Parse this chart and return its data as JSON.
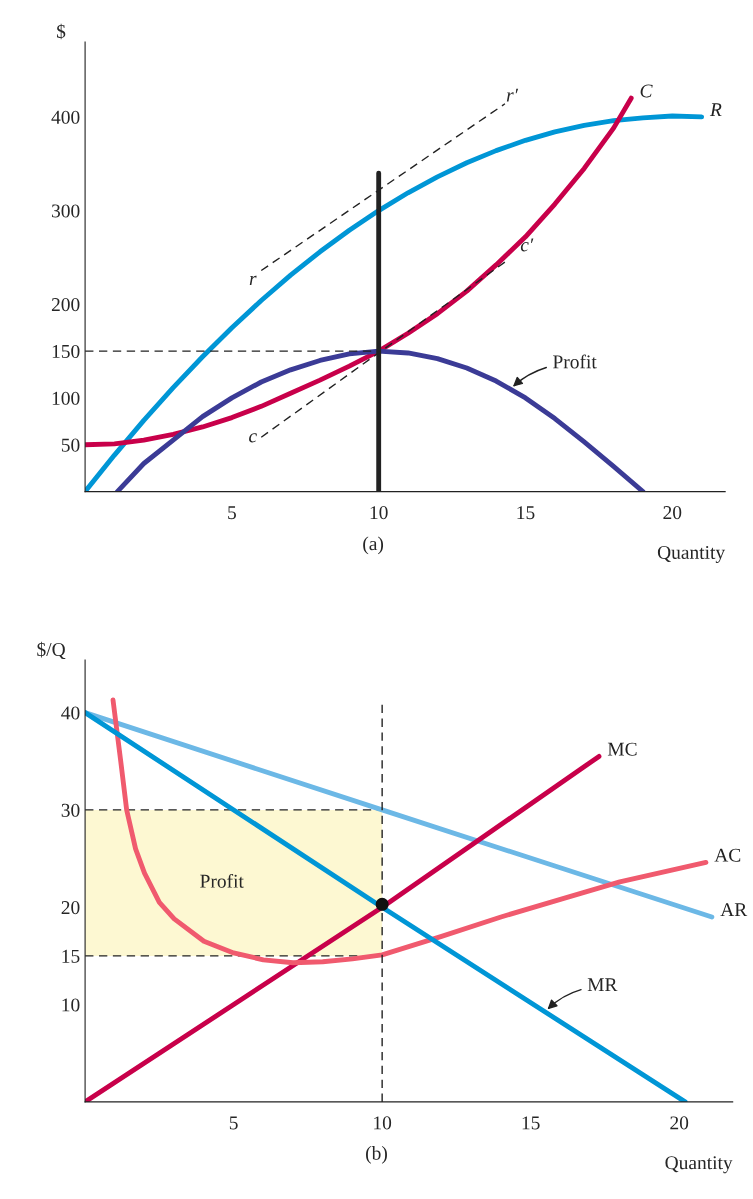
{
  "chart_data": [
    {
      "type": "line",
      "xlabel": "Quantity",
      "ylabel": "$",
      "xlim": [
        0,
        21.8
      ],
      "ylim": [
        0,
        480
      ],
      "xticks": [
        5,
        10,
        15,
        20
      ],
      "yticks": [
        50,
        100,
        150,
        200,
        300,
        400
      ],
      "grid": false,
      "legend": false,
      "series": [
        {
          "name": "R",
          "color": "#0096d6",
          "x": [
            0,
            1,
            2,
            3,
            4,
            5,
            6,
            7,
            8,
            9,
            10,
            11,
            12,
            13,
            14,
            15,
            16,
            17,
            18,
            19,
            20,
            21
          ],
          "values": [
            0,
            39,
            76,
            111,
            144,
            175,
            204,
            231,
            256,
            279,
            300,
            319,
            336,
            351,
            364,
            375,
            384,
            391,
            396,
            399,
            401,
            400
          ]
        },
        {
          "name": "C",
          "color": "#c8004a",
          "x": [
            0,
            1,
            2,
            3,
            4,
            5,
            6,
            7,
            8,
            9,
            10,
            11,
            12,
            13,
            14,
            15,
            16,
            17,
            18,
            18.6
          ],
          "values": [
            50,
            51,
            55,
            61,
            69,
            79,
            91,
            105,
            119,
            134,
            150,
            169,
            190,
            214,
            242,
            272,
            307,
            345,
            388,
            420
          ]
        },
        {
          "color": "#3b3b96",
          "x": [
            1.1,
            2,
            3,
            4,
            5,
            6,
            7,
            8,
            9,
            10,
            11,
            12,
            13,
            14,
            15,
            16,
            17,
            18,
            19
          ],
          "values": [
            0,
            30,
            55,
            80,
            100,
            117,
            130,
            140,
            147,
            150,
            148,
            142,
            132,
            118,
            100,
            78,
            53,
            27,
            0
          ]
        },
        {
          "color": "#222222",
          "x": [
            10,
            10
          ],
          "values": [
            0,
            340
          ]
        },
        {
          "color": "#222222",
          "line_style": "dashed",
          "x": [
            0,
            10
          ],
          "values": [
            150,
            150
          ]
        },
        {
          "color": "#222222",
          "line_style": "dashed",
          "x": [
            6.0,
            14.3
          ],
          "values": [
            236,
            414
          ]
        },
        {
          "color": "#222222",
          "line_style": "dashed",
          "x": [
            6.0,
            14.3
          ],
          "values": [
            58,
            245
          ]
        }
      ],
      "annotations": [
        "r",
        "r′",
        "c",
        "c′",
        {
          "text": "Profit",
          "x": 14.5,
          "y": 110
        },
        "(a)"
      ]
    },
    {
      "type": "line",
      "xlabel": "Quantity",
      "ylabel": "$/Q",
      "xlim": [
        0,
        21.8
      ],
      "ylim": [
        0,
        45.4
      ],
      "xticks": [
        5,
        10,
        15,
        20
      ],
      "yticks": [
        10,
        15,
        20,
        30,
        40
      ],
      "grid": false,
      "legend": false,
      "series": [
        {
          "color": "#222222",
          "line_style": "dashed",
          "x": [
            0,
            10
          ],
          "values": [
            30,
            30
          ]
        },
        {
          "color": "#222222",
          "line_style": "dashed",
          "x": [
            0,
            10
          ],
          "values": [
            15,
            15
          ]
        },
        {
          "name": "AR",
          "color": "#6cb8e6",
          "x": [
            0,
            10,
            21.1
          ],
          "values": [
            40,
            30,
            19
          ]
        },
        {
          "name": "MC",
          "color": "#c8004a",
          "x": [
            0,
            10,
            17.3
          ],
          "values": [
            0,
            20,
            35.5
          ]
        },
        {
          "name": "AC",
          "color": "#f05a6e",
          "x": [
            0.94,
            1.2,
            1.4,
            1.7,
            2,
            2.5,
            3,
            4,
            5,
            6,
            7,
            8,
            9,
            10,
            12,
            14,
            16,
            18,
            20.9
          ],
          "values": [
            41.3,
            35,
            30,
            26,
            23.5,
            20.5,
            18.8,
            16.5,
            15.3,
            14.6,
            14.3,
            14.4,
            14.7,
            15.1,
            17,
            19,
            20.8,
            22.6,
            24.6
          ]
        },
        {
          "color": "#0096d6",
          "x": [
            0,
            10,
            20.2
          ],
          "values": [
            40,
            20,
            0
          ]
        },
        {
          "type": "scatter",
          "color": "#111111",
          "x": [
            10
          ],
          "values": [
            20.3
          ]
        }
      ],
      "ref_lines": [
        {
          "axis": "x",
          "value": 10,
          "color": "#222222",
          "line_style": "dashed"
        }
      ],
      "bands": [
        {
          "axis": "y",
          "from": 15,
          "to": 30,
          "label": "Profit",
          "color": "#fdf8d2"
        }
      ],
      "annotations": [
        {
          "text": "MR",
          "x": 15.5,
          "y": 9.3
        },
        "(b)"
      ]
    }
  ]
}
